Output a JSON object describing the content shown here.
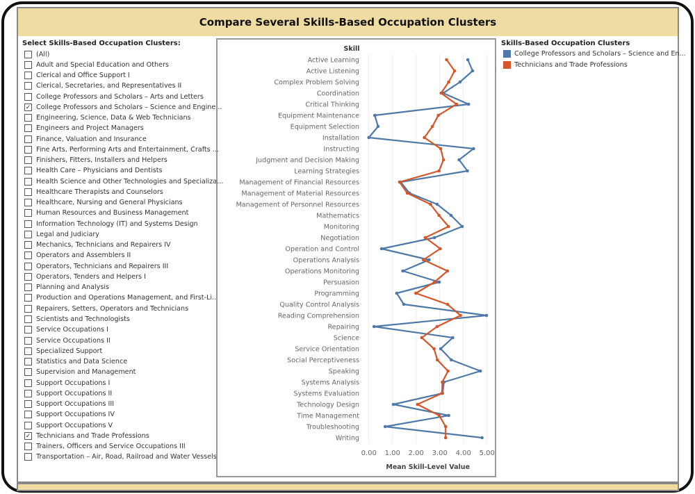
{
  "title": "Compare Several Skills-Based Occupation Clusters",
  "filter": {
    "title": "Select Skills-Based Occupation Clusters:",
    "items": [
      {
        "label": "(All)",
        "checked": false
      },
      {
        "label": "Adult and Special Education and Others",
        "checked": false
      },
      {
        "label": "Clerical and Office Support I",
        "checked": false
      },
      {
        "label": "Clerical, Secretaries, and Representatives II",
        "checked": false
      },
      {
        "label": "College Professors and Scholars – Arts and Letters",
        "checked": false
      },
      {
        "label": "College Professors and Scholars – Science and Engine...",
        "checked": true
      },
      {
        "label": "Engineering, Science, Data & Web Technicians",
        "checked": false
      },
      {
        "label": "Engineers and Project Managers",
        "checked": false
      },
      {
        "label": "Finance, Valuation and Insurance",
        "checked": false
      },
      {
        "label": "Fine Arts, Performing Arts and Entertainment, Crafts ...",
        "checked": false
      },
      {
        "label": "Finishers, Fitters, Installers and Helpers",
        "checked": false
      },
      {
        "label": "Health Care – Physicians and Dentists",
        "checked": false
      },
      {
        "label": "Health Science and Other Technologies and Specializa...",
        "checked": false
      },
      {
        "label": "Healthcare Therapists and Counselors",
        "checked": false
      },
      {
        "label": "Healthcare, Nursing and General Physicians",
        "checked": false
      },
      {
        "label": "Human Resources and Business Management",
        "checked": false
      },
      {
        "label": "Information Technology (IT) and Systems Design",
        "checked": false
      },
      {
        "label": "Legal and Judiciary",
        "checked": false
      },
      {
        "label": "Mechanics, Technicians and Repairers IV",
        "checked": false
      },
      {
        "label": "Operators and Assemblers II",
        "checked": false
      },
      {
        "label": "Operators, Technicians and Repairers III",
        "checked": false
      },
      {
        "label": "Operators, Tenders and Helpers I",
        "checked": false
      },
      {
        "label": "Planning and Analysis",
        "checked": false
      },
      {
        "label": "Production and Operations Management, and First-Li...",
        "checked": false
      },
      {
        "label": "Repairers, Setters, Operators and Technicians",
        "checked": false
      },
      {
        "label": "Scientists and Technologists",
        "checked": false
      },
      {
        "label": "Service Occupations I",
        "checked": false
      },
      {
        "label": "Service Occupations II",
        "checked": false
      },
      {
        "label": "Specialized Support",
        "checked": false
      },
      {
        "label": "Statistics and Data Science",
        "checked": false
      },
      {
        "label": "Supervision and Management",
        "checked": false
      },
      {
        "label": "Support Occupations I",
        "checked": false
      },
      {
        "label": "Support Occupations II",
        "checked": false
      },
      {
        "label": "Support Occupations III",
        "checked": false
      },
      {
        "label": "Support Occupations IV",
        "checked": false
      },
      {
        "label": "Support Occupations V",
        "checked": false
      },
      {
        "label": "Technicians and Trade Professions",
        "checked": true
      },
      {
        "label": "Trainers, Officers and Service Occupations III",
        "checked": false
      },
      {
        "label": "Transportation – Air, Road, Railroad and Water Vessels",
        "checked": false
      }
    ]
  },
  "legend": {
    "title": "Skills-Based Occupation Clusters",
    "items": [
      {
        "label": "College Professors and Scholars – Science and En...",
        "color": "#4e79a7"
      },
      {
        "label": "Technicians and Trade Professions",
        "color": "#d4562a"
      }
    ]
  },
  "chart_data": {
    "type": "line",
    "orientation": "horizontal-value-axis",
    "ylabel": "Skill",
    "xlabel": "Mean Skill-Level Value",
    "xlim": [
      0,
      5
    ],
    "xticks": [
      "0.00",
      "1.00",
      "2.00",
      "3.00",
      "4.00",
      "5.00"
    ],
    "grid": true,
    "legend_position": "right",
    "categories": [
      "Active Learning",
      "Active Listening",
      "Complex Problem Solving",
      "Coordination",
      "Critical Thinking",
      "Equipment Maintenance",
      "Equipment Selection",
      "Installation",
      "Instructing",
      "Judgment and Decision Making",
      "Learning Strategies",
      "Management of Financial Resources",
      "Management of Material Resources",
      "Management of Personnel Resources",
      "Mathematics",
      "Monitoring",
      "Negotiation",
      "Operation and Control",
      "Operations Analysis",
      "Operations Monitoring",
      "Persuasion",
      "Programming",
      "Quality Control Analysis",
      "Reading Comprehension",
      "Repairing",
      "Science",
      "Service Orientation",
      "Social Perceptiveness",
      "Speaking",
      "Systems Analysis",
      "Systems Evaluation",
      "Technology Design",
      "Time Management",
      "Troubleshooting",
      "Writing"
    ],
    "series": [
      {
        "name": "College Professors and Scholars – Science and En...",
        "color": "#4e79a7",
        "values": [
          4.19,
          4.39,
          3.86,
          3.15,
          4.22,
          0.25,
          0.39,
          0.0,
          4.43,
          3.82,
          4.17,
          1.35,
          1.72,
          2.89,
          3.48,
          3.95,
          2.78,
          0.54,
          2.55,
          1.44,
          2.98,
          1.18,
          1.48,
          4.98,
          0.22,
          3.55,
          3.04,
          3.49,
          4.72,
          3.18,
          3.12,
          1.04,
          3.38,
          0.69,
          4.79
        ]
      },
      {
        "name": "Technicians and Trade Professions",
        "color": "#d4562a",
        "values": [
          3.29,
          3.63,
          3.38,
          3.06,
          3.71,
          2.94,
          2.69,
          2.35,
          3.04,
          3.16,
          2.97,
          1.3,
          1.63,
          2.61,
          2.97,
          3.37,
          2.39,
          3.02,
          2.31,
          3.33,
          2.78,
          1.99,
          3.33,
          3.88,
          2.89,
          2.24,
          2.76,
          2.9,
          3.35,
          3.11,
          3.1,
          2.06,
          2.98,
          3.25,
          3.25
        ]
      }
    ]
  }
}
